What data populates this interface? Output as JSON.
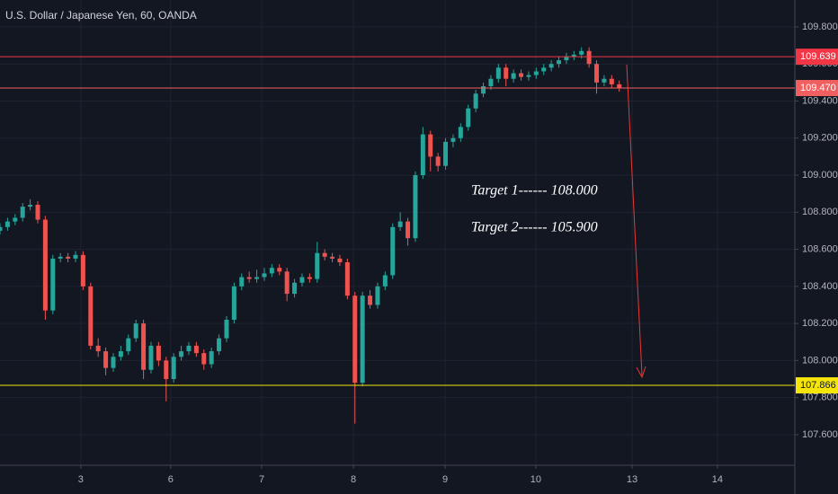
{
  "chart_data": {
    "type": "candlestick",
    "title": "U.S. Dollar / Japanese Yen, 60, OANDA",
    "x": [
      0,
      2,
      4,
      6,
      8,
      10,
      12,
      14,
      16,
      18,
      20,
      22,
      24,
      26,
      28,
      30,
      32,
      34,
      36,
      38,
      40,
      42,
      44,
      46,
      48,
      50,
      52,
      54,
      56,
      58,
      60,
      62,
      64,
      66,
      68,
      70,
      72,
      74,
      76,
      78,
      80,
      82,
      84,
      86,
      88,
      90,
      92,
      94,
      96,
      98,
      100,
      102,
      104,
      106,
      108,
      110,
      112,
      114,
      116,
      118,
      120,
      122,
      124,
      126,
      128,
      130,
      132,
      134,
      136,
      138,
      140,
      142,
      144,
      146,
      148,
      150,
      152,
      154,
      156,
      158,
      160,
      162,
      164
    ],
    "open": [
      108.7,
      108.72,
      108.75,
      108.77,
      108.83,
      108.84,
      108.76,
      108.27,
      108.55,
      108.56,
      108.55,
      108.57,
      108.4,
      108.08,
      108.05,
      107.96,
      108.02,
      108.05,
      108.12,
      108.2,
      107.95,
      108.08,
      108.0,
      107.9,
      108.02,
      108.05,
      108.08,
      108.04,
      107.98,
      108.05,
      108.12,
      108.22,
      108.4,
      108.45,
      108.44,
      108.45,
      108.47,
      108.5,
      108.48,
      108.36,
      108.42,
      108.45,
      108.44,
      108.58,
      108.56,
      108.55,
      108.53,
      108.35,
      107.88,
      108.35,
      108.3,
      108.4,
      108.46,
      108.72,
      108.75,
      108.66,
      109.0,
      109.22,
      109.1,
      109.05,
      109.18,
      109.2,
      109.26,
      109.36,
      109.44,
      109.48,
      109.52,
      109.58,
      109.52,
      109.55,
      109.53,
      109.54,
      109.56,
      109.58,
      109.6,
      109.62,
      109.64,
      109.65,
      109.67,
      109.6,
      109.5,
      109.52,
      109.49
    ],
    "high": [
      108.74,
      108.77,
      108.79,
      108.85,
      108.87,
      108.86,
      108.78,
      108.57,
      108.58,
      108.58,
      108.59,
      108.59,
      108.42,
      108.12,
      108.07,
      108.04,
      108.08,
      108.14,
      108.22,
      108.22,
      108.1,
      108.1,
      108.02,
      108.04,
      108.08,
      108.1,
      108.1,
      108.06,
      108.07,
      108.14,
      108.24,
      108.42,
      108.47,
      108.48,
      108.49,
      108.5,
      108.52,
      108.52,
      108.5,
      108.44,
      108.47,
      108.47,
      108.64,
      108.6,
      108.58,
      108.57,
      108.55,
      108.37,
      108.37,
      108.38,
      108.42,
      108.48,
      108.74,
      108.8,
      108.77,
      109.02,
      109.26,
      109.24,
      109.12,
      109.2,
      109.22,
      109.28,
      109.38,
      109.46,
      109.5,
      109.54,
      109.6,
      109.6,
      109.57,
      109.57,
      109.56,
      109.58,
      109.6,
      109.62,
      109.64,
      109.66,
      109.67,
      109.69,
      109.69,
      109.62,
      109.54,
      109.54,
      109.51
    ],
    "low": [
      108.68,
      108.7,
      108.73,
      108.75,
      108.81,
      108.74,
      108.22,
      108.25,
      108.53,
      108.53,
      108.53,
      108.38,
      108.06,
      108.02,
      107.92,
      107.94,
      108.0,
      108.03,
      108.1,
      107.9,
      107.93,
      107.97,
      107.78,
      107.88,
      108.0,
      108.03,
      108.02,
      107.95,
      107.96,
      108.03,
      108.1,
      108.2,
      108.38,
      108.42,
      108.42,
      108.43,
      108.45,
      108.46,
      108.32,
      108.34,
      108.4,
      108.42,
      108.42,
      108.54,
      108.53,
      108.51,
      108.33,
      107.66,
      107.86,
      108.28,
      108.28,
      108.38,
      108.44,
      108.7,
      108.62,
      108.64,
      108.98,
      109.02,
      109.02,
      109.03,
      109.15,
      109.18,
      109.24,
      109.34,
      109.42,
      109.46,
      109.5,
      109.48,
      109.5,
      109.51,
      109.51,
      109.52,
      109.54,
      109.56,
      109.58,
      109.6,
      109.62,
      109.63,
      109.58,
      109.44,
      109.48,
      109.47,
      109.45
    ],
    "close": [
      108.72,
      108.75,
      108.77,
      108.83,
      108.84,
      108.76,
      108.27,
      108.55,
      108.56,
      108.55,
      108.57,
      108.4,
      108.08,
      108.05,
      107.96,
      108.02,
      108.05,
      108.12,
      108.2,
      107.95,
      108.08,
      108.0,
      107.9,
      108.02,
      108.05,
      108.08,
      108.04,
      107.98,
      108.05,
      108.12,
      108.22,
      108.4,
      108.45,
      108.44,
      108.45,
      108.47,
      108.5,
      108.48,
      108.36,
      108.42,
      108.45,
      108.44,
      108.58,
      108.56,
      108.55,
      108.53,
      108.35,
      107.88,
      108.35,
      108.3,
      108.4,
      108.46,
      108.72,
      108.75,
      108.66,
      109.0,
      109.22,
      109.1,
      109.05,
      109.18,
      109.2,
      109.26,
      109.36,
      109.44,
      109.48,
      109.52,
      109.58,
      109.52,
      109.55,
      109.53,
      109.54,
      109.56,
      109.58,
      109.6,
      109.62,
      109.64,
      109.65,
      109.67,
      109.6,
      109.5,
      109.52,
      109.49,
      109.47
    ],
    "up_color": "#26a69a",
    "down_color": "#ef5350",
    "xlim": [
      0,
      210.5
    ],
    "ylim": [
      107.435,
      109.945
    ],
    "xticks": [
      {
        "value": 21.4,
        "label": "3"
      },
      {
        "value": 45.2,
        "label": "6"
      },
      {
        "value": 69.3,
        "label": "7"
      },
      {
        "value": 93.6,
        "label": "8"
      },
      {
        "value": 117.9,
        "label": "9"
      },
      {
        "value": 141.9,
        "label": "10"
      },
      {
        "value": 167.4,
        "label": "13"
      },
      {
        "value": 190,
        "label": "14"
      }
    ],
    "yticks": [
      {
        "value": 107.6,
        "label": "107.600"
      },
      {
        "value": 107.8,
        "label": "107.800"
      },
      {
        "value": 108.0,
        "label": "108.000"
      },
      {
        "value": 108.2,
        "label": "108.200"
      },
      {
        "value": 108.4,
        "label": "108.400"
      },
      {
        "value": 108.6,
        "label": "108.600"
      },
      {
        "value": 108.8,
        "label": "108.800"
      },
      {
        "value": 109.0,
        "label": "109.000"
      },
      {
        "value": 109.2,
        "label": "109.200"
      },
      {
        "value": 109.4,
        "label": "109.400"
      },
      {
        "value": 109.6,
        "label": "109.600"
      },
      {
        "value": 109.8,
        "label": "109.800"
      }
    ],
    "grid": true,
    "price_lines": [
      {
        "value": 109.639,
        "label": "109.639",
        "color": "#f23645",
        "text_color": "#ffffff"
      },
      {
        "value": 109.47,
        "label": "109.470",
        "color": "#f06060",
        "text_color": "#ffffff"
      },
      {
        "value": 107.866,
        "label": "107.866",
        "color": "#f5e50a",
        "text_color": "#131722"
      }
    ],
    "annotations": [
      "Target 1------ 108.000",
      "Target 2------ 105.900"
    ]
  }
}
